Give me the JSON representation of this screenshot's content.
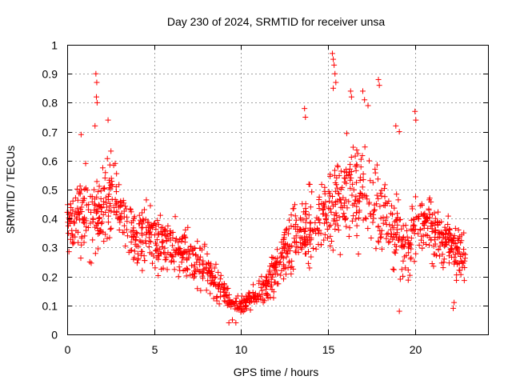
{
  "chart_data": {
    "type": "scatter",
    "title": "Day 230 of 2024, SRMTID for receiver unsa",
    "xlabel": "GPS time / hours",
    "ylabel": "SRMTID / TECUs",
    "xlim": [
      0,
      24.2
    ],
    "ylim": [
      0,
      1
    ],
    "xticks": [
      0,
      5,
      10,
      15,
      20
    ],
    "yticks": [
      0,
      0.1,
      0.2,
      0.3,
      0.4,
      0.5,
      0.6,
      0.7,
      0.8,
      0.9,
      1
    ],
    "xtick_labels": [
      "0",
      "5",
      "10",
      "15",
      "20"
    ],
    "ytick_labels": [
      "0",
      "0.1",
      "0.2",
      "0.3",
      "0.4",
      "0.5",
      "0.6",
      "0.7",
      "0.8",
      "0.9",
      "1"
    ],
    "grid": true,
    "marker": "plus",
    "color": "#ff0000",
    "series": [
      {
        "name": "SRMTID",
        "profile_hours": [
          0,
          0.5,
          1,
          1.5,
          2,
          2.5,
          3,
          3.5,
          4,
          4.5,
          5,
          5.5,
          6,
          6.5,
          7,
          7.5,
          8,
          8.5,
          9,
          9.5,
          10,
          10.5,
          11,
          11.5,
          12,
          12.5,
          13,
          13.5,
          14,
          14.5,
          15,
          15.5,
          16,
          16.5,
          17,
          17.5,
          18,
          18.5,
          19,
          19.5,
          20,
          20.5,
          21,
          21.5,
          22,
          22.5,
          22.9
        ],
        "profile_median": [
          0.42,
          0.38,
          0.42,
          0.4,
          0.44,
          0.48,
          0.45,
          0.36,
          0.33,
          0.35,
          0.33,
          0.3,
          0.31,
          0.28,
          0.27,
          0.24,
          0.23,
          0.18,
          0.15,
          0.1,
          0.1,
          0.12,
          0.14,
          0.16,
          0.22,
          0.28,
          0.33,
          0.35,
          0.38,
          0.4,
          0.42,
          0.46,
          0.5,
          0.48,
          0.5,
          0.46,
          0.42,
          0.38,
          0.35,
          0.28,
          0.38,
          0.4,
          0.36,
          0.33,
          0.31,
          0.28,
          0.25
        ],
        "profile_spread": [
          0.12,
          0.1,
          0.12,
          0.12,
          0.13,
          0.12,
          0.1,
          0.09,
          0.1,
          0.1,
          0.09,
          0.09,
          0.09,
          0.08,
          0.08,
          0.08,
          0.07,
          0.06,
          0.05,
          0.03,
          0.03,
          0.04,
          0.05,
          0.06,
          0.07,
          0.08,
          0.09,
          0.1,
          0.11,
          0.11,
          0.13,
          0.14,
          0.14,
          0.14,
          0.14,
          0.13,
          0.12,
          0.11,
          0.1,
          0.1,
          0.1,
          0.09,
          0.09,
          0.08,
          0.08,
          0.08,
          0.07
        ],
        "spikes": [
          {
            "x": 1.65,
            "y": 0.9
          },
          {
            "x": 1.7,
            "y": 0.87
          },
          {
            "x": 1.68,
            "y": 0.82
          },
          {
            "x": 1.72,
            "y": 0.8
          },
          {
            "x": 1.6,
            "y": 0.72
          },
          {
            "x": 2.35,
            "y": 0.74
          },
          {
            "x": 0.8,
            "y": 0.69
          },
          {
            "x": 13.65,
            "y": 0.78
          },
          {
            "x": 13.7,
            "y": 0.75
          },
          {
            "x": 15.25,
            "y": 0.97
          },
          {
            "x": 15.3,
            "y": 0.95
          },
          {
            "x": 15.35,
            "y": 0.93
          },
          {
            "x": 15.4,
            "y": 0.9
          },
          {
            "x": 15.45,
            "y": 0.87
          },
          {
            "x": 15.3,
            "y": 0.85
          },
          {
            "x": 16.3,
            "y": 0.84
          },
          {
            "x": 16.35,
            "y": 0.82
          },
          {
            "x": 17,
            "y": 0.84
          },
          {
            "x": 17.1,
            "y": 0.81
          },
          {
            "x": 17.3,
            "y": 0.79
          },
          {
            "x": 17.9,
            "y": 0.88
          },
          {
            "x": 17.95,
            "y": 0.86
          },
          {
            "x": 18.9,
            "y": 0.72
          },
          {
            "x": 19.1,
            "y": 0.7
          },
          {
            "x": 20,
            "y": 0.77
          },
          {
            "x": 20.05,
            "y": 0.74
          },
          {
            "x": 9.3,
            "y": 0.04
          },
          {
            "x": 9.5,
            "y": 0.05
          },
          {
            "x": 9.7,
            "y": 0.04
          },
          {
            "x": 19.1,
            "y": 0.08
          },
          {
            "x": 22.2,
            "y": 0.09
          },
          {
            "x": 22.25,
            "y": 0.11
          }
        ]
      }
    ]
  }
}
